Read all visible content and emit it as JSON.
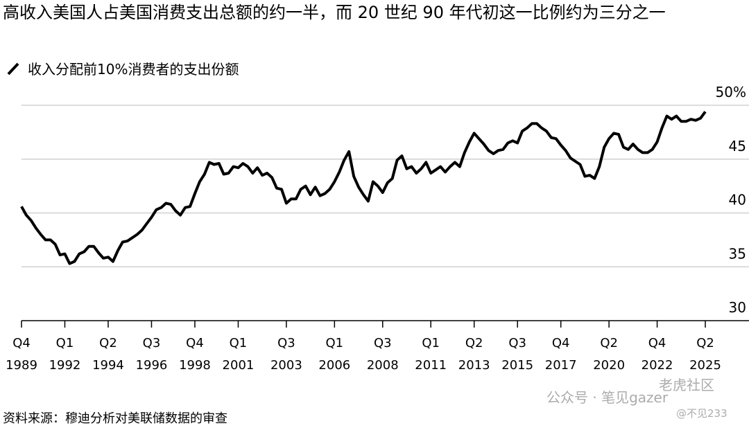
{
  "chart_data": {
    "type": "line",
    "title": "高收入美国人占美国消费支出总额的约一半，而 20 世纪 90 年代初这一比例约为三分之一",
    "source": "资料来源：穆迪分析对美联储数据的审查",
    "categories": [
      "Q4 1989",
      null,
      null,
      null,
      null,
      null,
      null,
      null,
      null,
      "Q1 1992",
      null,
      null,
      null,
      null,
      null,
      null,
      null,
      null,
      "Q2 1994",
      null,
      null,
      null,
      null,
      null,
      null,
      null,
      null,
      "Q3 1996",
      null,
      null,
      null,
      null,
      null,
      null,
      null,
      null,
      "Q4 1998",
      null,
      null,
      null,
      null,
      null,
      null,
      null,
      null,
      "Q1 2001",
      null,
      null,
      null,
      null,
      null,
      null,
      null,
      null,
      null,
      "Q3 2003",
      null,
      null,
      null,
      null,
      null,
      null,
      null,
      null,
      null,
      "Q1 2006",
      null,
      null,
      null,
      null,
      null,
      null,
      null,
      null,
      null,
      "Q3 2008",
      null,
      null,
      null,
      null,
      null,
      null,
      null,
      null,
      null,
      "Q1 2011",
      null,
      null,
      null,
      null,
      null,
      null,
      null,
      null,
      "Q2 2013",
      null,
      null,
      null,
      null,
      null,
      null,
      null,
      null,
      "Q3 2015",
      null,
      null,
      null,
      null,
      null,
      null,
      null,
      null,
      "Q4 2017",
      null,
      null,
      null,
      null,
      null,
      null,
      null,
      null,
      null,
      "Q2 2020",
      null,
      null,
      null,
      null,
      null,
      null,
      null,
      null,
      null,
      "Q4 2022",
      null,
      null,
      null,
      null,
      null,
      null,
      null,
      null,
      null,
      "Q2 2025"
    ],
    "series": [
      {
        "name": "收入分配前10%消费者的支出份额",
        "color": "#000000",
        "values": [
          40.6,
          39.8,
          39.3,
          38.6,
          38.0,
          37.5,
          37.5,
          37.1,
          36.1,
          36.2,
          35.3,
          35.5,
          36.2,
          36.4,
          36.9,
          36.9,
          36.3,
          35.8,
          35.9,
          35.5,
          36.5,
          37.3,
          37.4,
          37.7,
          38.0,
          38.4,
          39.0,
          39.6,
          40.3,
          40.5,
          40.9,
          40.8,
          40.2,
          39.8,
          40.5,
          40.6,
          41.8,
          42.9,
          43.6,
          44.7,
          44.5,
          44.6,
          43.6,
          43.7,
          44.3,
          44.2,
          44.6,
          44.3,
          43.7,
          44.2,
          43.5,
          43.7,
          43.3,
          42.3,
          42.2,
          40.9,
          41.3,
          41.3,
          42.2,
          42.5,
          41.7,
          42.4,
          41.6,
          41.8,
          42.2,
          42.9,
          43.8,
          44.9,
          45.7,
          43.4,
          42.4,
          41.7,
          41.1,
          42.9,
          42.5,
          41.9,
          42.8,
          43.2,
          44.9,
          45.3,
          44.1,
          44.3,
          43.7,
          44.1,
          44.7,
          43.7,
          44.0,
          44.3,
          43.8,
          44.3,
          44.7,
          44.3,
          45.6,
          46.6,
          47.4,
          46.9,
          46.4,
          45.8,
          45.5,
          45.8,
          45.9,
          46.5,
          46.7,
          46.5,
          47.6,
          47.9,
          48.3,
          48.3,
          47.9,
          47.6,
          47.0,
          46.9,
          46.3,
          45.8,
          45.1,
          44.8,
          44.5,
          43.4,
          43.5,
          43.2,
          44.3,
          46.1,
          46.9,
          47.4,
          47.3,
          46.1,
          45.9,
          46.4,
          45.9,
          45.6,
          45.6,
          45.9,
          46.6,
          47.9,
          49.0,
          48.7,
          49.0,
          48.5,
          48.5,
          48.7,
          48.6,
          48.8,
          49.4
        ]
      }
    ],
    "ylim": [
      30,
      50
    ],
    "yticks": [
      30,
      35,
      40,
      45,
      {
        "value": 50,
        "label": "50%"
      }
    ],
    "grid": true
  },
  "watermark": [
    "公众号 · 笔见gazer",
    "老虎社区",
    "@不见233"
  ]
}
